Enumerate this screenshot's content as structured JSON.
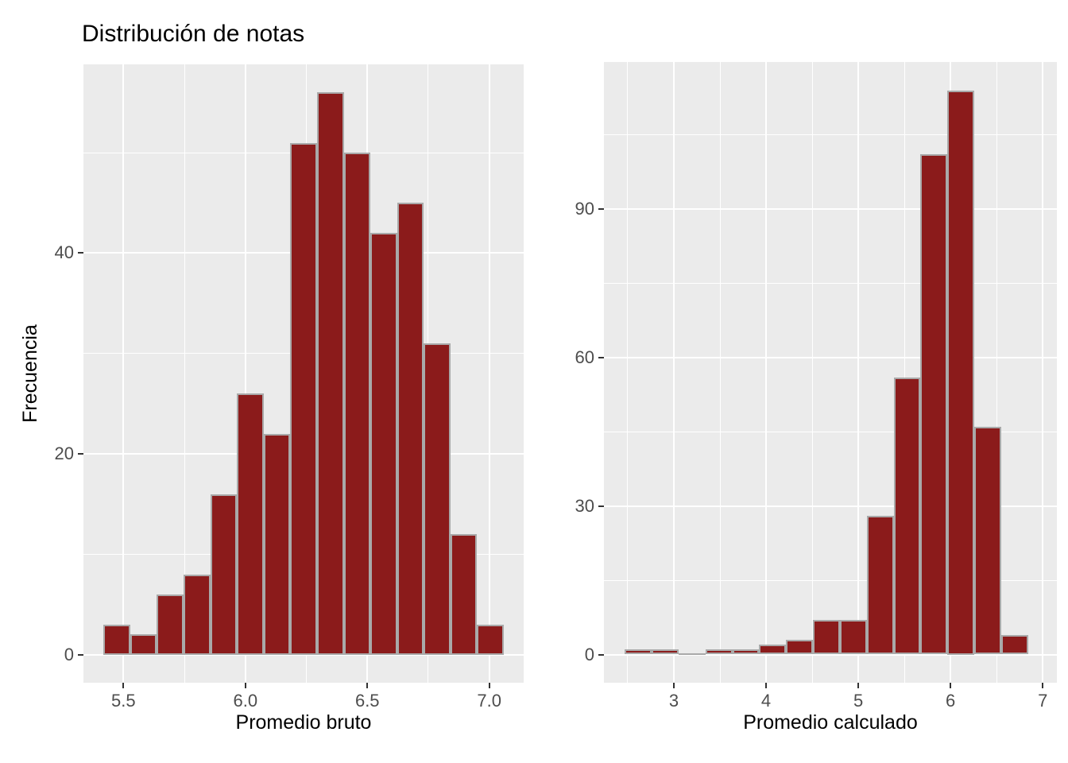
{
  "title": "Distribución de notas",
  "colors": {
    "background": "#FFFFFF",
    "panel_background": "#EBEBEB",
    "grid_major": "#FFFFFF",
    "grid_minor": "#FFFFFF",
    "bar_fill": "#8B1B1B",
    "bar_border": "#A9A9A9",
    "tick_label": "#4D4D4D",
    "tick_mark": "#333333",
    "axis_title": "#000000",
    "title_color": "#000000"
  },
  "chart_data": [
    {
      "type": "bar",
      "subtype": "histogram",
      "title": "Distribución de notas",
      "xlabel": "Promedio bruto",
      "ylabel": "Frecuencia",
      "bin_start": 5.4185,
      "bin_width": 0.1094,
      "values": [
        3,
        2,
        6,
        8,
        16,
        26,
        22,
        51,
        56,
        50,
        42,
        45,
        31,
        12,
        3
      ],
      "xlim": [
        5.336,
        7.141
      ],
      "ylim": [
        -2.8,
        58.8
      ],
      "x_breaks": [
        5.5,
        6.0,
        6.5,
        7.0
      ],
      "x_break_labels": [
        "5.5",
        "6.0",
        "6.5",
        "7.0"
      ],
      "x_minor_breaks": [
        5.75,
        6.25,
        6.75
      ],
      "y_breaks": [
        0,
        20,
        40
      ],
      "y_break_labels": [
        "0",
        "20",
        "40"
      ],
      "y_minor_breaks": [
        10,
        30,
        50
      ],
      "grid": true,
      "legend": "none"
    },
    {
      "type": "bar",
      "subtype": "histogram",
      "title": "",
      "xlabel": "Promedio calculado",
      "ylabel": "",
      "bin_start": 2.468,
      "bin_width": 0.2915,
      "values": [
        1,
        1,
        0,
        1,
        1,
        2,
        3,
        7,
        7,
        28,
        56,
        101,
        114,
        46,
        4
      ],
      "xlim": [
        2.242,
        7.153
      ],
      "ylim": [
        -5.7,
        119.7
      ],
      "x_breaks": [
        3,
        4,
        5,
        6,
        7
      ],
      "x_break_labels": [
        "3",
        "4",
        "5",
        "6",
        "7"
      ],
      "x_minor_breaks": [
        2.5,
        3.5,
        4.5,
        5.5,
        6.5
      ],
      "y_breaks": [
        0,
        30,
        60,
        90
      ],
      "y_break_labels": [
        "0",
        "30",
        "60",
        "90"
      ],
      "y_minor_breaks": [
        15,
        45,
        75,
        105
      ],
      "grid": true,
      "legend": "none"
    }
  ]
}
